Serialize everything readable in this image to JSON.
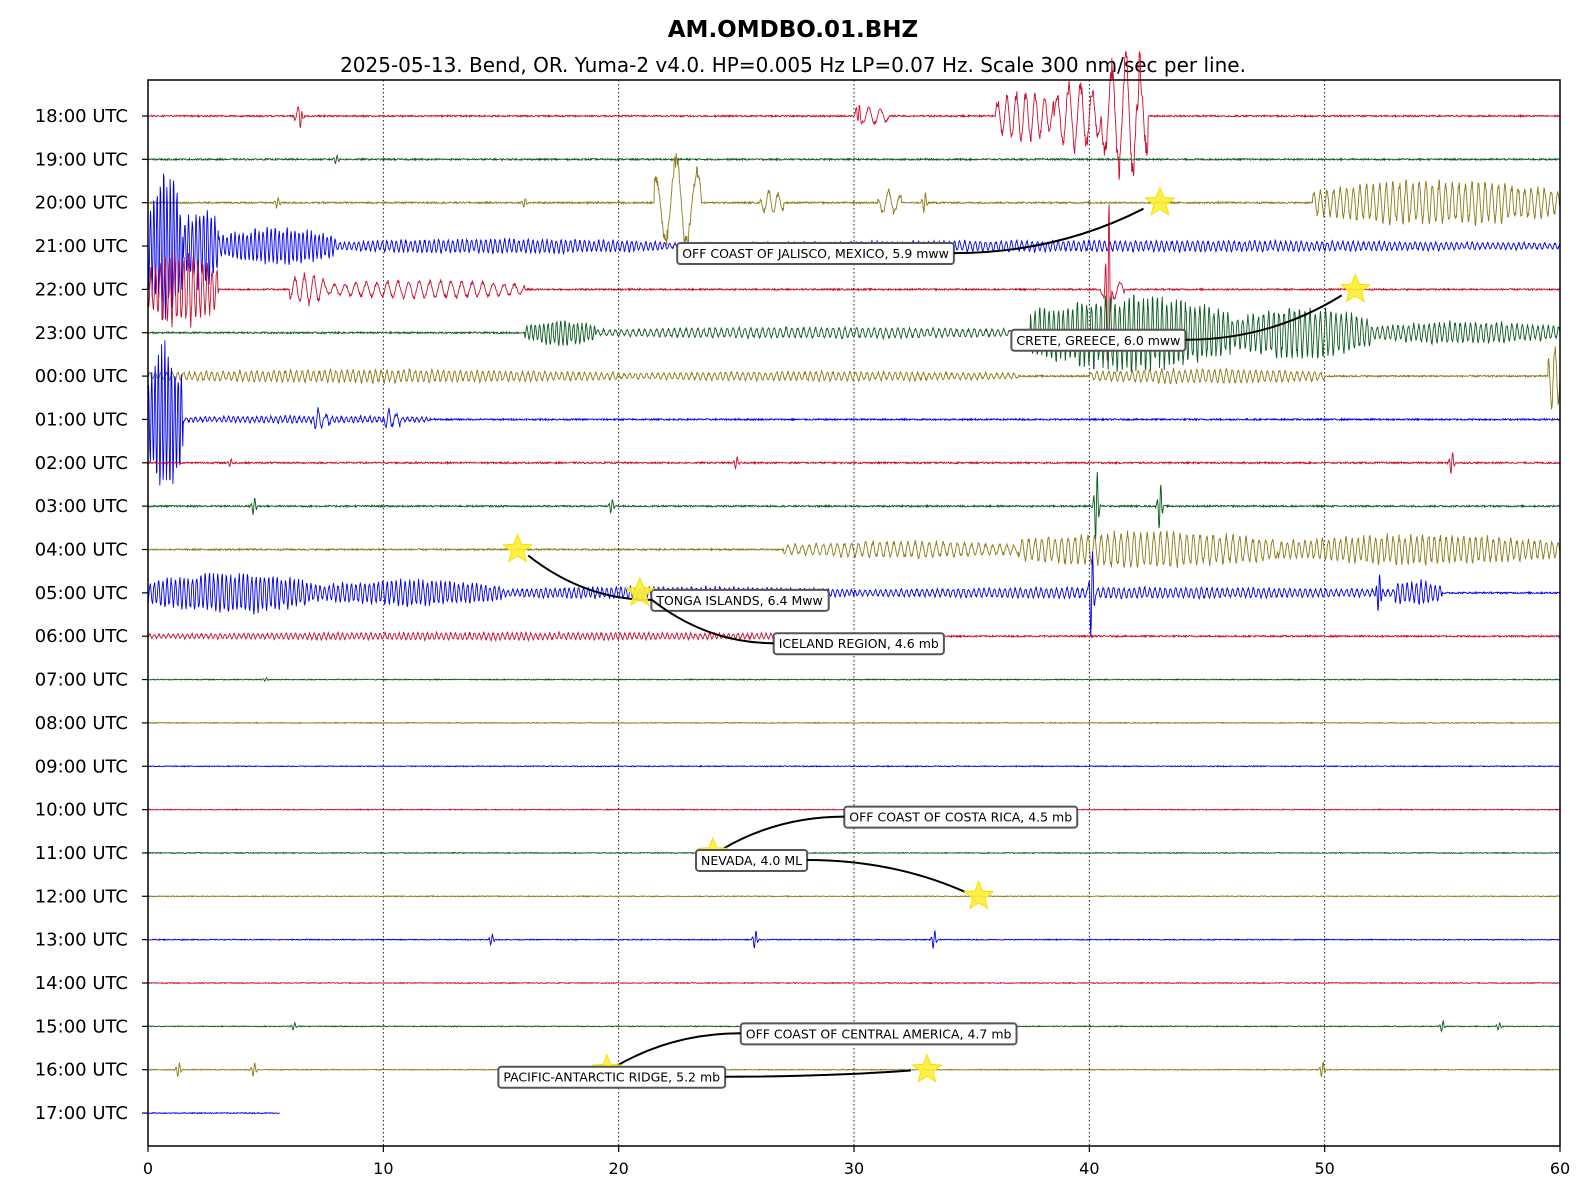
{
  "chart_data": {
    "type": "line",
    "title": "AM.OMDBO.01.BHZ",
    "subtitle": "2025-05-13. Bend, OR. Yuma-2 v4.0. HP=0.005 Hz LP=0.07 Hz. Scale 300 nm/sec per line.",
    "xlabel": "",
    "ylabel": "",
    "xlim": [
      0,
      60
    ],
    "x_ticks": [
      0,
      10,
      20,
      30,
      40,
      50,
      60
    ],
    "grid": "vertical dotted lines at x ticks",
    "line_colors": [
      "#c8102e",
      "#0b5a1e",
      "#8b7a15",
      "#0000ee"
    ],
    "rows": [
      {
        "label": "18:00 UTC",
        "color": "#c8102e",
        "end_min": 60
      },
      {
        "label": "19:00 UTC",
        "color": "#0b5a1e",
        "end_min": 60
      },
      {
        "label": "20:00 UTC",
        "color": "#8b7a15",
        "end_min": 60
      },
      {
        "label": "21:00 UTC",
        "color": "#0000ee",
        "end_min": 60
      },
      {
        "label": "22:00 UTC",
        "color": "#c8102e",
        "end_min": 60
      },
      {
        "label": "23:00 UTC",
        "color": "#0b5a1e",
        "end_min": 60
      },
      {
        "label": "00:00 UTC",
        "color": "#8b7a15",
        "end_min": 60
      },
      {
        "label": "01:00 UTC",
        "color": "#0000ee",
        "end_min": 60
      },
      {
        "label": "02:00 UTC",
        "color": "#c8102e",
        "end_min": 60
      },
      {
        "label": "03:00 UTC",
        "color": "#0b5a1e",
        "end_min": 60
      },
      {
        "label": "04:00 UTC",
        "color": "#8b7a15",
        "end_min": 60
      },
      {
        "label": "05:00 UTC",
        "color": "#0000ee",
        "end_min": 60
      },
      {
        "label": "06:00 UTC",
        "color": "#c8102e",
        "end_min": 60
      },
      {
        "label": "07:00 UTC",
        "color": "#0b5a1e",
        "end_min": 60
      },
      {
        "label": "08:00 UTC",
        "color": "#8b7a15",
        "end_min": 60
      },
      {
        "label": "09:00 UTC",
        "color": "#0000ee",
        "end_min": 60
      },
      {
        "label": "10:00 UTC",
        "color": "#c8102e",
        "end_min": 60
      },
      {
        "label": "11:00 UTC",
        "color": "#0b5a1e",
        "end_min": 60
      },
      {
        "label": "12:00 UTC",
        "color": "#8b7a15",
        "end_min": 60
      },
      {
        "label": "13:00 UTC",
        "color": "#0000ee",
        "end_min": 60
      },
      {
        "label": "14:00 UTC",
        "color": "#c8102e",
        "end_min": 60
      },
      {
        "label": "15:00 UTC",
        "color": "#0b5a1e",
        "end_min": 60
      },
      {
        "label": "16:00 UTC",
        "color": "#8b7a15",
        "end_min": 60
      },
      {
        "label": "17:00 UTC",
        "color": "#0000ee",
        "end_min": 5.6
      }
    ],
    "events": [
      {
        "label": "OFF COAST OF JALISCO, MEXICO, 5.9 mww",
        "star_row": 2,
        "star_min": 43.0,
        "label_row": 3,
        "label_min": 22.7
      },
      {
        "label": "CRETE, GREECE, 6.0 mww",
        "star_row": 4,
        "star_min": 51.3,
        "label_row": 5,
        "label_min": 36.9
      },
      {
        "label": "TONGA ISLANDS, 6.4 Mww",
        "star_row": 10,
        "star_min": 15.7,
        "label_row": 11,
        "label_min": 21.6
      },
      {
        "label": "ICELAND REGION, 4.6 mb",
        "star_row": 11,
        "star_min": 20.9,
        "label_row": 12,
        "label_min": 26.8
      },
      {
        "label": "OFF COAST OF COSTA RICA, 4.5 mb",
        "star_row": 17,
        "star_min": 24.0,
        "label_row": 16,
        "label_min": 29.8
      },
      {
        "label": "NEVADA, 4.0 ML",
        "star_row": 18,
        "star_min": 35.3,
        "label_row": 17,
        "label_min": 23.5
      },
      {
        "label": "OFF COAST OF CENTRAL AMERICA, 4.7 mb",
        "star_row": 22,
        "star_min": 19.5,
        "label_row": 21,
        "label_min": 25.4
      },
      {
        "label": "PACIFIC-ANTARCTIC RIDGE, 5.2 mb",
        "star_row": 22,
        "star_min": 33.1,
        "label_row": 22,
        "label_min": 15.1
      }
    ]
  }
}
